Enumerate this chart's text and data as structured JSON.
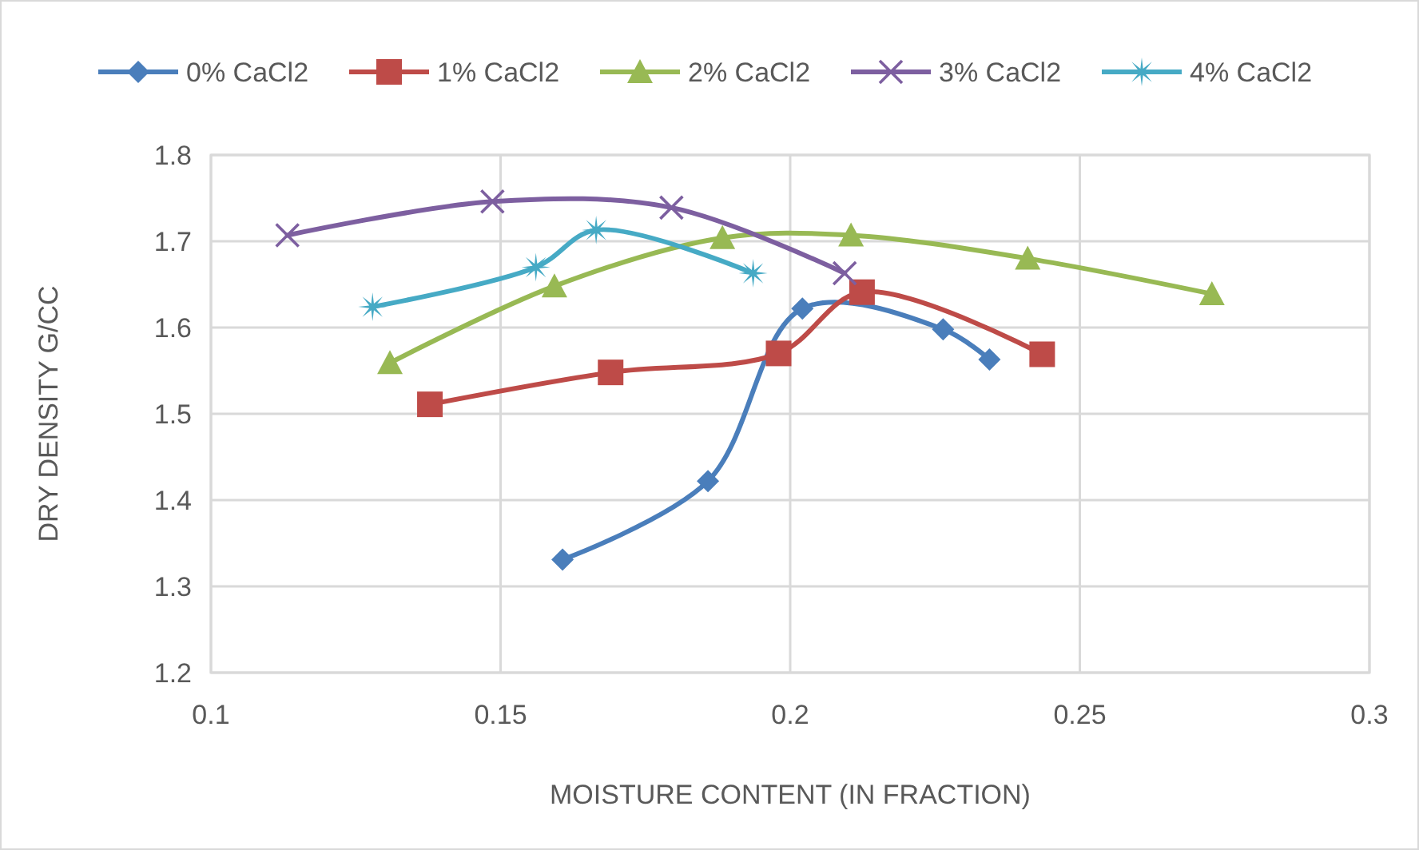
{
  "chart_data": {
    "type": "line",
    "xlabel": "MOISTURE CONTENT (IN FRACTION)",
    "ylabel": "DRY DENSITY G/CC",
    "xlim": [
      0.1,
      0.3
    ],
    "xticks": [
      0.1,
      0.15,
      0.2,
      0.25,
      0.3
    ],
    "ylim": [
      1.2,
      1.8
    ],
    "yticks": [
      1.2,
      1.3,
      1.4,
      1.5,
      1.6,
      1.7,
      1.8
    ],
    "grid": true,
    "legend": "top",
    "line_style": "solid",
    "series": [
      {
        "name": "0% CaCl2",
        "color": "#4a7ebb",
        "marker": "diamond",
        "x": [
          0.1607,
          0.1858,
          0.2021,
          0.2264,
          0.2344
        ],
        "values": [
          1.331,
          1.422,
          1.622,
          1.598,
          1.563
        ]
      },
      {
        "name": "1% CaCl2",
        "color": "#be4b48",
        "marker": "square",
        "x": [
          0.1378,
          0.169,
          0.198,
          0.2124,
          0.2435
        ],
        "values": [
          1.511,
          1.548,
          1.57,
          1.641,
          1.569
        ]
      },
      {
        "name": "2% CaCl2",
        "color": "#98b954",
        "marker": "triangle",
        "x": [
          0.1309,
          0.1593,
          0.1883,
          0.2105,
          0.241,
          0.2728
        ],
        "values": [
          1.559,
          1.648,
          1.704,
          1.707,
          1.68,
          1.639
        ]
      },
      {
        "name": "3% CaCl2",
        "color": "#7d5fa0",
        "marker": "cross",
        "x": [
          0.1132,
          0.1486,
          0.1795,
          0.2094
        ],
        "values": [
          1.707,
          1.746,
          1.739,
          1.663
        ]
      },
      {
        "name": "4% CaCl2",
        "color": "#46aac5",
        "marker": "star",
        "x": [
          0.1279,
          0.1561,
          0.1665,
          0.1936
        ],
        "values": [
          1.624,
          1.67,
          1.713,
          1.663
        ]
      }
    ]
  }
}
